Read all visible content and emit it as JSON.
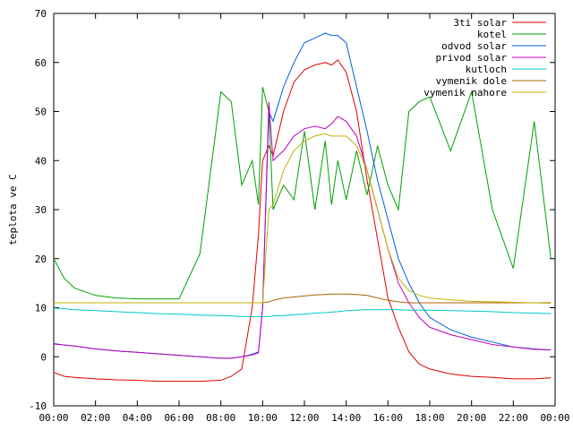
{
  "chart_data": {
    "type": "line",
    "title": "",
    "xlabel": "",
    "ylabel": "teplota ve C",
    "xlim": [
      "00:00",
      "24:00"
    ],
    "ylim": [
      -10,
      70
    ],
    "x_ticks": [
      "00:00",
      "02:00",
      "04:00",
      "06:00",
      "08:00",
      "10:00",
      "12:00",
      "14:00",
      "16:00",
      "18:00",
      "20:00",
      "22:00",
      "00:00"
    ],
    "y_ticks": [
      -10,
      0,
      10,
      20,
      30,
      40,
      50,
      60,
      70
    ],
    "grid": false,
    "legend_position": "top-right",
    "x_hours": [
      0,
      0.5,
      1,
      2,
      3,
      4,
      5,
      6,
      7,
      8,
      8.5,
      9,
      9.5,
      9.8,
      10,
      10.3,
      10.5,
      11,
      11.5,
      12,
      12.5,
      13,
      13.3,
      13.6,
      14,
      14.5,
      15,
      15.5,
      16,
      16.5,
      17,
      17.5,
      18,
      19,
      20,
      21,
      22,
      23,
      23.8
    ],
    "series": [
      {
        "name": "3ti solar",
        "color": "#e00000",
        "values": [
          -3.2,
          -4,
          -4.2,
          -4.5,
          -4.7,
          -4.8,
          -5,
          -5,
          -5,
          -4.8,
          -4,
          -2.5,
          10,
          25,
          40,
          43,
          41,
          50,
          56,
          58.5,
          59.5,
          60,
          59.5,
          60.5,
          58,
          50,
          36,
          24,
          12,
          6,
          1,
          -1.5,
          -2.5,
          -3.5,
          -4,
          -4.2,
          -4.5,
          -4.5,
          -4.3
        ]
      },
      {
        "name": "kotel",
        "color": "#00a000",
        "values": [
          20,
          16,
          14,
          12.5,
          12,
          11.8,
          11.8,
          11.8,
          21,
          54,
          52,
          35,
          40,
          31,
          55,
          50,
          30,
          35,
          32,
          46,
          30,
          44,
          31,
          40,
          32,
          42,
          33,
          43,
          35,
          30,
          50,
          52,
          53,
          42,
          54,
          30,
          18,
          48,
          20
        ]
      },
      {
        "name": "odvod solar",
        "color": "#0060e0",
        "values": [
          2.7,
          2.4,
          2.2,
          1.6,
          1.2,
          0.9,
          0.6,
          0.3,
          0,
          -0.3,
          -0.3,
          0,
          0.5,
          1,
          10,
          50,
          48,
          55,
          60,
          64,
          65,
          66,
          65.5,
          65.5,
          64,
          55,
          46,
          36,
          28,
          20,
          15,
          11,
          8,
          5.5,
          4,
          3,
          2,
          1.6,
          1.4
        ]
      },
      {
        "name": "privod solar",
        "color": "#c000c0",
        "values": [
          2.6,
          2.4,
          2.2,
          1.6,
          1.2,
          0.9,
          0.6,
          0.3,
          0,
          -0.3,
          -0.3,
          0,
          0.4,
          0.8,
          10,
          52,
          40,
          42,
          45,
          46.5,
          47,
          46.5,
          47.5,
          49,
          48,
          45,
          38,
          30,
          22,
          15,
          11,
          8,
          6,
          4.5,
          3.5,
          2.5,
          2,
          1.5,
          1.4
        ]
      },
      {
        "name": "kutloch",
        "color": "#00c8c8",
        "values": [
          9.9,
          9.8,
          9.6,
          9.4,
          9.2,
          9,
          8.8,
          8.7,
          8.5,
          8.4,
          8.3,
          8.2,
          8.2,
          8.2,
          8.2,
          8.2,
          8.3,
          8.4,
          8.6,
          8.7,
          8.9,
          9,
          9.1,
          9.2,
          9.4,
          9.5,
          9.6,
          9.6,
          9.6,
          9.6,
          9.5,
          9.5,
          9.5,
          9.4,
          9.3,
          9.2,
          9,
          8.9,
          8.8
        ]
      },
      {
        "name": "vymenik dole",
        "color": "#b06000",
        "values": [
          11,
          11,
          11,
          11,
          11,
          11,
          11,
          11,
          11,
          11,
          11,
          11,
          11,
          11,
          11,
          11.2,
          11.5,
          12,
          12.2,
          12.4,
          12.6,
          12.7,
          12.8,
          12.8,
          12.8,
          12.7,
          12.5,
          12,
          11.5,
          11.2,
          11,
          11,
          11,
          11,
          11,
          11,
          11,
          11,
          11
        ]
      },
      {
        "name": "vymenik nahore",
        "color": "#c0b000",
        "values": [
          11,
          11,
          11,
          11,
          11,
          11,
          11,
          11,
          11,
          11,
          11,
          11,
          11,
          11,
          11,
          30,
          31,
          38,
          42,
          44,
          45,
          45.5,
          45,
          45,
          45,
          43,
          38,
          30,
          22,
          16,
          13.5,
          12.5,
          12,
          11.6,
          11.3,
          11.2,
          11.1,
          11,
          10.9
        ]
      }
    ]
  }
}
